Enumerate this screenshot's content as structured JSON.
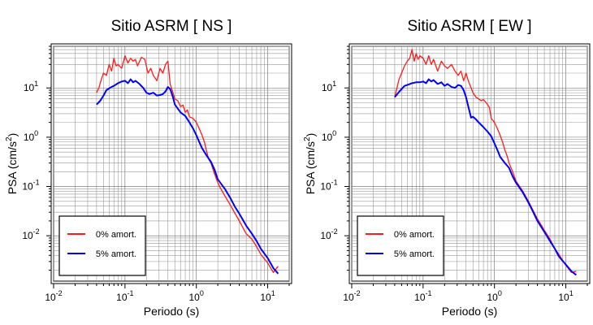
{
  "chart_data": [
    {
      "type": "line",
      "title": "Sitio ASRM [ NS ]",
      "xlabel": "Periodo (s)",
      "ylabel_main": "PSA (cm/s",
      "ylabel_sup": "2",
      "ylabel_end": ")",
      "xscale": "log",
      "yscale": "log",
      "xlim": [
        0.01,
        20
      ],
      "ylim": [
        0.0012,
        70
      ],
      "grid": true,
      "legend_position": "bottom-left",
      "x_ticks": [
        {
          "base": "10",
          "exp": "-2"
        },
        {
          "base": "10",
          "exp": "-1"
        },
        {
          "base": "10",
          "exp": "0"
        },
        {
          "base": "10",
          "exp": "1"
        }
      ],
      "y_ticks": [
        {
          "base": "10",
          "exp": "-2"
        },
        {
          "base": "10",
          "exp": "-1"
        },
        {
          "base": "10",
          "exp": "0"
        },
        {
          "base": "10",
          "exp": "1"
        }
      ],
      "series": [
        {
          "name": "0% amort.",
          "color": "#ff1a1a",
          "x": [
            0.04,
            0.043,
            0.046,
            0.05,
            0.055,
            0.06,
            0.065,
            0.07,
            0.075,
            0.08,
            0.09,
            0.1,
            0.11,
            0.12,
            0.13,
            0.14,
            0.15,
            0.17,
            0.19,
            0.21,
            0.23,
            0.25,
            0.28,
            0.31,
            0.34,
            0.37,
            0.4,
            0.43,
            0.47,
            0.5,
            0.55,
            0.6,
            0.65,
            0.7,
            0.75,
            0.8,
            0.9,
            1.0,
            1.1,
            1.2,
            1.3,
            1.4,
            1.5,
            1.6,
            1.8,
            2.0,
            2.2,
            2.5,
            3.0,
            3.5,
            4.0,
            5.0,
            6.0,
            7.0,
            8.0,
            10.0,
            12.0,
            14.0
          ],
          "y": [
            8,
            10,
            14,
            20,
            18,
            30,
            22,
            40,
            28,
            30,
            25,
            45,
            32,
            40,
            35,
            38,
            28,
            42,
            38,
            20,
            25,
            18,
            14,
            25,
            20,
            30,
            35,
            12,
            8,
            6,
            5.5,
            4.2,
            4.5,
            3.2,
            3.6,
            2.6,
            2.4,
            2.0,
            1.5,
            1.1,
            0.8,
            0.5,
            0.35,
            0.3,
            0.18,
            0.12,
            0.09,
            0.065,
            0.042,
            0.028,
            0.02,
            0.011,
            0.0085,
            0.006,
            0.0042,
            0.0028,
            0.0018,
            0.0024
          ]
        },
        {
          "name": "5% amort.",
          "color": "#0000ff",
          "x": [
            0.04,
            0.045,
            0.05,
            0.055,
            0.06,
            0.065,
            0.07,
            0.08,
            0.09,
            0.1,
            0.11,
            0.12,
            0.13,
            0.14,
            0.16,
            0.18,
            0.2,
            0.22,
            0.25,
            0.28,
            0.31,
            0.34,
            0.37,
            0.4,
            0.43,
            0.47,
            0.5,
            0.55,
            0.6,
            0.7,
            0.8,
            0.9,
            1.0,
            1.1,
            1.2,
            1.4,
            1.6,
            1.8,
            2.0,
            2.5,
            3.0,
            3.5,
            4.0,
            5.0,
            6.0,
            7.0,
            8.0,
            10.0,
            12.0,
            14.0
          ],
          "y": [
            4.6,
            5.5,
            7,
            9,
            9.8,
            10.5,
            11,
            12.5,
            13.5,
            14,
            12.5,
            15,
            13,
            14,
            12,
            10,
            8,
            7.5,
            8,
            7,
            7.2,
            7.5,
            8.5,
            10.5,
            9.5,
            6.5,
            4.6,
            3.8,
            3.2,
            2.7,
            2.0,
            1.5,
            1.1,
            0.8,
            0.6,
            0.42,
            0.32,
            0.22,
            0.14,
            0.09,
            0.058,
            0.038,
            0.028,
            0.016,
            0.011,
            0.0078,
            0.0055,
            0.0035,
            0.0022,
            0.0017
          ]
        }
      ]
    },
    {
      "type": "line",
      "title": "Sitio ASRM [ EW ]",
      "xlabel": "Periodo (s)",
      "ylabel_main": "PSA (cm/s",
      "ylabel_sup": "2",
      "ylabel_end": ")",
      "xscale": "log",
      "yscale": "log",
      "xlim": [
        0.01,
        20
      ],
      "ylim": [
        0.0012,
        70
      ],
      "grid": true,
      "legend_position": "bottom-left",
      "x_ticks": [
        {
          "base": "10",
          "exp": "-2"
        },
        {
          "base": "10",
          "exp": "-1"
        },
        {
          "base": "10",
          "exp": "0"
        },
        {
          "base": "10",
          "exp": "1"
        }
      ],
      "y_ticks": [
        {
          "base": "10",
          "exp": "-2"
        },
        {
          "base": "10",
          "exp": "-1"
        },
        {
          "base": "10",
          "exp": "0"
        },
        {
          "base": "10",
          "exp": "1"
        }
      ],
      "series": [
        {
          "name": "0% amort.",
          "color": "#ff1a1a",
          "x": [
            0.04,
            0.043,
            0.046,
            0.05,
            0.055,
            0.06,
            0.065,
            0.07,
            0.075,
            0.08,
            0.085,
            0.09,
            0.1,
            0.11,
            0.12,
            0.13,
            0.14,
            0.16,
            0.18,
            0.2,
            0.22,
            0.25,
            0.28,
            0.31,
            0.34,
            0.37,
            0.4,
            0.43,
            0.47,
            0.5,
            0.55,
            0.6,
            0.65,
            0.7,
            0.75,
            0.8,
            0.85,
            0.9,
            1.0,
            1.1,
            1.2,
            1.3,
            1.4,
            1.5,
            1.6,
            1.8,
            2.0,
            2.5,
            3.0,
            3.5,
            4.0,
            5.0,
            6.0,
            7.0,
            8.0,
            10.0,
            12.0,
            14.0
          ],
          "y": [
            6.5,
            10,
            15,
            20,
            28,
            35,
            40,
            60,
            35,
            50,
            38,
            45,
            40,
            30,
            45,
            30,
            38,
            22,
            35,
            28,
            25,
            30,
            22,
            18,
            22,
            14,
            20,
            14,
            10,
            8,
            6.5,
            6,
            5.5,
            5.8,
            5.2,
            4.6,
            4.0,
            2.4,
            2.0,
            1.5,
            1.1,
            0.8,
            0.55,
            0.42,
            0.3,
            0.2,
            0.13,
            0.08,
            0.05,
            0.032,
            0.022,
            0.013,
            0.0085,
            0.0055,
            0.0042,
            0.0025,
            0.0018,
            0.0019
          ]
        },
        {
          "name": "5% amort.",
          "color": "#0000ff",
          "x": [
            0.04,
            0.045,
            0.05,
            0.055,
            0.06,
            0.065,
            0.07,
            0.08,
            0.09,
            0.1,
            0.11,
            0.12,
            0.13,
            0.14,
            0.16,
            0.18,
            0.2,
            0.22,
            0.25,
            0.28,
            0.31,
            0.34,
            0.37,
            0.4,
            0.43,
            0.47,
            0.5,
            0.55,
            0.6,
            0.7,
            0.8,
            0.9,
            1.0,
            1.1,
            1.2,
            1.4,
            1.6,
            1.8,
            2.0,
            2.5,
            3.0,
            3.5,
            4.0,
            5.0,
            6.0,
            7.0,
            8.0,
            10.0,
            12.0,
            14.0
          ],
          "y": [
            6.5,
            8,
            9.5,
            11,
            11.5,
            12,
            12.5,
            13,
            13,
            13.5,
            12.5,
            15,
            13.5,
            14.5,
            12,
            13,
            11,
            12,
            10.5,
            10,
            11.5,
            11,
            9,
            6.5,
            4.2,
            2.5,
            2.6,
            2.3,
            2.0,
            1.6,
            1.3,
            1.05,
            0.75,
            0.55,
            0.4,
            0.3,
            0.24,
            0.16,
            0.12,
            0.075,
            0.047,
            0.03,
            0.02,
            0.012,
            0.0078,
            0.0055,
            0.0038,
            0.0026,
            0.0019,
            0.0016
          ]
        }
      ]
    }
  ]
}
